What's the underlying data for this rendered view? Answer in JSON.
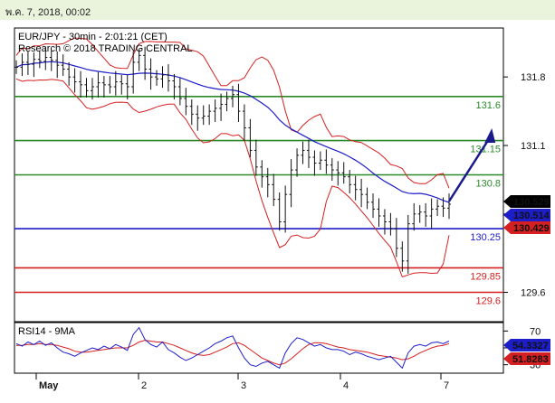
{
  "header": {
    "date": "พ.ค. 7, 2018, 00:02"
  },
  "chart_data": {
    "type": "line",
    "title": "EUR/JPY - 30min - 2:01:21 (CET)",
    "subtitle": "Research © 2018 TRADING CENTRAL",
    "instrument": "EUR/JPY",
    "timeframe": "30min",
    "price_axis": {
      "ticks": [
        "131.8",
        "131.1",
        "130.4",
        "129.6"
      ],
      "ylim": [
        129.3,
        132.3
      ]
    },
    "x_axis": {
      "ticks": [
        "May",
        "2",
        "3",
        "4",
        "7"
      ]
    },
    "levels": [
      {
        "label": "131.6",
        "value": 131.6,
        "color": "#2a8a2a",
        "name": "resistance-2"
      },
      {
        "label": "131.15",
        "value": 131.15,
        "color": "#2a8a2a",
        "name": "resistance-1"
      },
      {
        "label": "130.8",
        "value": 130.8,
        "color": "#2a8a2a",
        "name": "pivot"
      },
      {
        "label": "130.25",
        "value": 130.25,
        "color": "#1d1dc9",
        "name": "support-1"
      },
      {
        "label": "129.85",
        "value": 129.85,
        "color": "#d42020",
        "name": "support-2"
      },
      {
        "label": "129.6",
        "value": 129.6,
        "color": "#d42020",
        "name": "support-3"
      }
    ],
    "price_badges": [
      {
        "label": "130.529",
        "color": "#000000"
      },
      {
        "label": "130.514",
        "color": "#1d1dc9"
      },
      {
        "label": "130.429",
        "color": "#d42020"
      }
    ],
    "close_series": [
      131.9,
      131.95,
      131.93,
      131.98,
      131.96,
      132.0,
      131.97,
      131.92,
      131.88,
      131.8,
      131.75,
      131.72,
      131.66,
      131.7,
      131.74,
      131.72,
      131.7,
      131.75,
      131.73,
      131.7,
      131.95,
      132.02,
      131.88,
      131.8,
      131.78,
      131.82,
      131.76,
      131.7,
      131.58,
      131.5,
      131.42,
      131.38,
      131.4,
      131.45,
      131.48,
      131.52,
      131.58,
      131.62,
      131.45,
      131.28,
      131.05,
      130.88,
      130.78,
      130.7,
      130.55,
      130.32,
      130.6,
      130.85,
      131.0,
      131.05,
      130.98,
      130.92,
      130.95,
      130.9,
      130.85,
      130.82,
      130.78,
      130.7,
      130.65,
      130.6,
      130.52,
      130.45,
      130.38,
      130.32,
      130.25,
      130.05,
      129.92,
      130.3,
      130.4,
      130.42,
      130.38,
      130.45,
      130.48,
      130.46,
      130.5
    ],
    "arrow": {
      "from": [
        74,
        130.53
      ],
      "to": [
        81,
        131.22
      ],
      "color": "#1a1a8c"
    },
    "rsi": {
      "title": "RSI14 - 9MA",
      "ticks": [
        "70",
        "50",
        "30"
      ],
      "ylim": [
        20,
        80
      ],
      "badges": [
        {
          "label": "54.3327",
          "color": "#1d1dc9"
        },
        {
          "label": "51.8283",
          "color": "#d42020"
        }
      ],
      "values": [
        55,
        52,
        57,
        54,
        58,
        53,
        56,
        50,
        45,
        43,
        40,
        44,
        47,
        50,
        48,
        52,
        49,
        54,
        51,
        47,
        66,
        74,
        60,
        54,
        51,
        57,
        48,
        44,
        39,
        35,
        38,
        42,
        46,
        50,
        55,
        58,
        62,
        64,
        50,
        38,
        30,
        28,
        32,
        34,
        30,
        26,
        44,
        55,
        62,
        60,
        56,
        52,
        54,
        50,
        48,
        48,
        46,
        42,
        45,
        43,
        40,
        38,
        36,
        38,
        40,
        33,
        26,
        44,
        52,
        54,
        52,
        56,
        57,
        55,
        58
      ],
      "ma_values": [
        53,
        53,
        54,
        54,
        55,
        54,
        54,
        53,
        51,
        49,
        46,
        45,
        45,
        46,
        47,
        48,
        49,
        50,
        50,
        50,
        53,
        57,
        59,
        58,
        57,
        57,
        55,
        53,
        50,
        47,
        44,
        42,
        41,
        42,
        45,
        48,
        51,
        55,
        56,
        53,
        48,
        43,
        38,
        35,
        32,
        30,
        32,
        37,
        43,
        49,
        54,
        56,
        56,
        55,
        53,
        51,
        50,
        48,
        47,
        46,
        45,
        43,
        41,
        40,
        39,
        38,
        36,
        37,
        40,
        44,
        47,
        50,
        52,
        53,
        55
      ]
    }
  }
}
